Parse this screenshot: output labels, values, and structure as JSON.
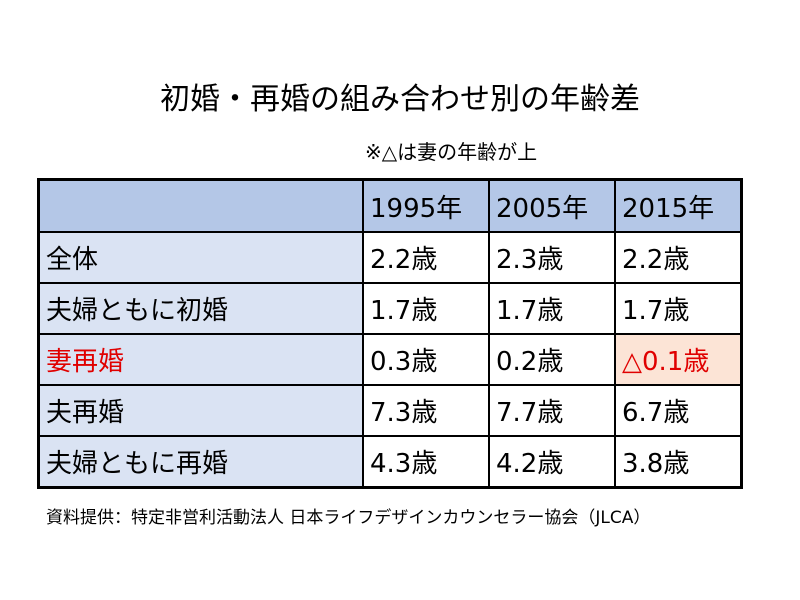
{
  "header": {
    "title": "初婚・再婚の組み合わせ別の年齢差",
    "note": "※△は妻の年齢が上"
  },
  "table": {
    "columns": [
      "",
      "1995年",
      "2005年",
      "2015年"
    ],
    "rows": [
      [
        "全体",
        "2.2歳",
        "2.3歳",
        "2.2歳"
      ],
      [
        "夫婦ともに初婚",
        "1.7歳",
        "1.7歳",
        "1.7歳"
      ],
      [
        "妻再婚",
        "0.3歳",
        "0.2歳",
        "△0.1歳"
      ],
      [
        "夫再婚",
        "7.3歳",
        "7.7歳",
        "6.7歳"
      ],
      [
        "夫婦ともに再婚",
        "4.3歳",
        "4.2歳",
        "3.8歳"
      ]
    ]
  },
  "source": "資料提供：特定非営利活動法人 日本ライフデザインカウンセラー協会（JLCA）"
}
